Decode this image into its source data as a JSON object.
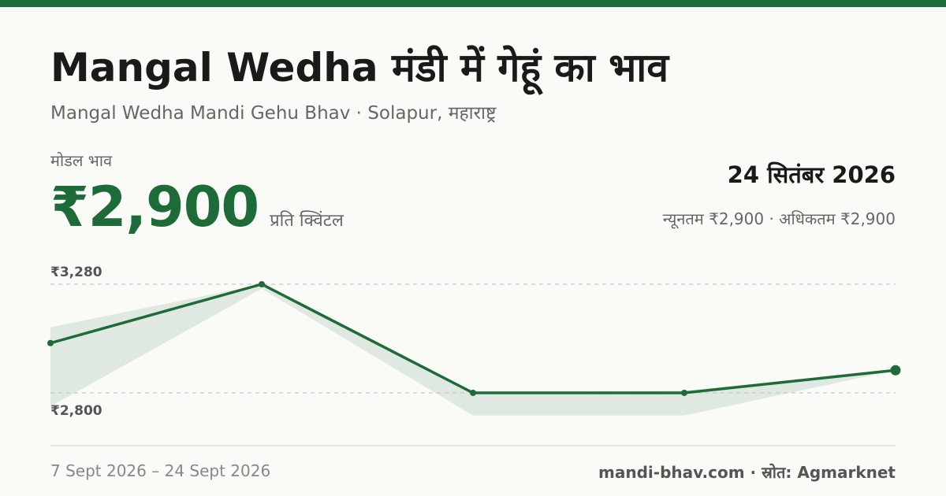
{
  "header": {
    "title": "Mangal Wedha मंडी में गेहूं का भाव",
    "subtitle": "Mangal Wedha Mandi Gehu Bhav · Solapur, महाराष्ट्र"
  },
  "summary": {
    "modal_label": "मोडल भाव",
    "modal_price": "₹2,900",
    "unit": "प्रति क्विंटल",
    "date": "24 सितंबर 2026",
    "minmax": "न्यूनतम ₹2,900 · अधिकतम ₹2,900"
  },
  "chart_data": {
    "type": "line",
    "x": [
      "7 Sept 2026",
      "",
      "",
      "",
      "24 Sept 2026"
    ],
    "series": [
      {
        "values": [
          3020,
          3280,
          2800,
          2800,
          2900
        ]
      }
    ],
    "band_min": [
      2740,
      3260,
      2700,
      2700,
      2900
    ],
    "band_max": [
      3090,
      3280,
      2800,
      2810,
      2900
    ],
    "y_ticks": [
      3280,
      2800
    ],
    "y_tick_labels": [
      "₹3,280",
      "₹2,800"
    ],
    "ylim": [
      2700,
      3280
    ],
    "grid": "dashed",
    "colors": {
      "line": "#1e6b3a",
      "band": "#dfe9e1",
      "grid": "#c8c8c8"
    }
  },
  "footer": {
    "range": "7 Sept 2026 – 24 Sept 2026",
    "source": "mandi-bhav.com · स्रोत: Agmarknet"
  }
}
